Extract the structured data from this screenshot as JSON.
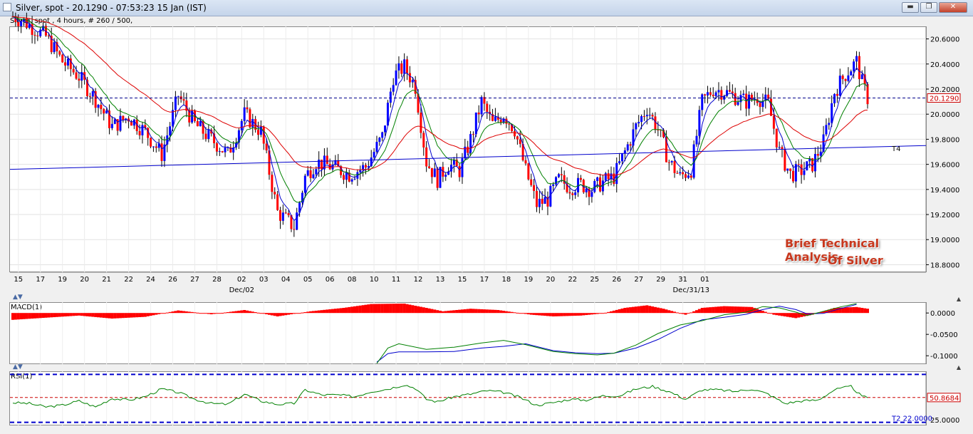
{
  "window": {
    "title": "Silver, spot - 20.1290 - 07:53:23  15 Jan (IST)",
    "buttons": {
      "minimize": "▬",
      "maximize": "❐",
      "close": "✕"
    }
  },
  "main_panel": {
    "label": "Silver, spot , 4 hours, # 260 / 500,"
  },
  "macd_panel": {
    "label": "MACD(1)"
  },
  "rsi_panel": {
    "label": "RSI(1)"
  },
  "watermark": {
    "line1": "Brief Technical Analysis",
    "line2": "Of Silver"
  },
  "chart_data": [
    {
      "type": "candlestick",
      "title": "Silver, spot , 4 hours, # 260 / 500,",
      "ylim": [
        18.74,
        20.7
      ],
      "y_ticks": [
        "20.6000",
        "20.4000",
        "20.2000",
        "20.0000",
        "19.8000",
        "19.6000",
        "19.4000",
        "19.2000",
        "19.0000",
        "18.8000"
      ],
      "x_ticks": [
        {
          "i": 2,
          "label": "15"
        },
        {
          "i": 10,
          "label": "17"
        },
        {
          "i": 18,
          "label": "19"
        },
        {
          "i": 26,
          "label": "20"
        },
        {
          "i": 34,
          "label": "21"
        },
        {
          "i": 42,
          "label": "22"
        },
        {
          "i": 50,
          "label": "24"
        },
        {
          "i": 58,
          "label": "26"
        },
        {
          "i": 66,
          "label": "27"
        },
        {
          "i": 74,
          "label": "28"
        },
        {
          "i": 83,
          "label": "02"
        },
        {
          "i": 91,
          "label": "03"
        },
        {
          "i": 99,
          "label": "04"
        },
        {
          "i": 107,
          "label": "05"
        },
        {
          "i": 115,
          "label": "06"
        },
        {
          "i": 123,
          "label": "08"
        },
        {
          "i": 131,
          "label": "10"
        },
        {
          "i": 139,
          "label": "11"
        },
        {
          "i": 147,
          "label": "12"
        },
        {
          "i": 155,
          "label": "13"
        },
        {
          "i": 163,
          "label": "15"
        },
        {
          "i": 171,
          "label": "17"
        },
        {
          "i": 179,
          "label": "18"
        },
        {
          "i": 187,
          "label": "19"
        },
        {
          "i": 195,
          "label": "20"
        },
        {
          "i": 203,
          "label": "22"
        },
        {
          "i": 211,
          "label": "25"
        },
        {
          "i": 219,
          "label": "26"
        },
        {
          "i": 227,
          "label": "27"
        },
        {
          "i": 235,
          "label": "29"
        },
        {
          "i": 243,
          "label": "31"
        },
        {
          "i": 251,
          "label": "01"
        }
      ],
      "x_ticks_note": "indices are bar positions in the displayed sequence",
      "x_labels_lower": [
        {
          "i": 83,
          "label": "Dec/02"
        },
        {
          "i": 246,
          "label": "Dec/31/13"
        }
      ],
      "current_price": 20.129,
      "current_price_label": "20.1290",
      "trendline": {
        "label": "T4",
        "y_start": 19.56,
        "y_end": 19.75
      },
      "moving_averages": [
        {
          "color": "#0000cc",
          "period": "short"
        },
        {
          "color": "#008000",
          "period": "medium"
        },
        {
          "color": "#dd0000",
          "period": "long"
        }
      ],
      "anchors": [
        [
          0,
          20.78
        ],
        [
          4,
          20.74
        ],
        [
          12,
          20.62
        ],
        [
          18,
          20.42
        ],
        [
          24,
          20.3
        ],
        [
          30,
          20.12
        ],
        [
          36,
          19.9
        ],
        [
          42,
          19.98
        ],
        [
          48,
          19.86
        ],
        [
          54,
          19.68
        ],
        [
          60,
          20.15
        ],
        [
          66,
          19.92
        ],
        [
          72,
          19.8
        ],
        [
          78,
          19.68
        ],
        [
          84,
          20.0
        ],
        [
          90,
          19.86
        ],
        [
          96,
          19.22
        ],
        [
          102,
          19.1
        ],
        [
          106,
          19.5
        ],
        [
          110,
          19.62
        ],
        [
          116,
          19.58
        ],
        [
          122,
          19.52
        ],
        [
          128,
          19.58
        ],
        [
          134,
          19.82
        ],
        [
          138,
          20.3
        ],
        [
          142,
          20.38
        ],
        [
          146,
          20.22
        ],
        [
          150,
          19.62
        ],
        [
          154,
          19.48
        ],
        [
          158,
          19.6
        ],
        [
          162,
          19.55
        ],
        [
          166,
          19.8
        ],
        [
          170,
          20.1
        ],
        [
          174,
          19.92
        ],
        [
          178,
          20.0
        ],
        [
          182,
          19.88
        ],
        [
          186,
          19.55
        ],
        [
          190,
          19.28
        ],
        [
          194,
          19.32
        ],
        [
          198,
          19.48
        ],
        [
          202,
          19.42
        ],
        [
          206,
          19.44
        ],
        [
          210,
          19.4
        ],
        [
          214,
          19.46
        ],
        [
          218,
          19.5
        ],
        [
          222,
          19.7
        ],
        [
          226,
          19.9
        ],
        [
          230,
          20.05
        ],
        [
          234,
          19.88
        ],
        [
          238,
          19.62
        ],
        [
          242,
          19.5
        ],
        [
          246,
          19.56
        ],
        [
          250,
          20.1
        ],
        [
          254,
          20.2
        ],
        [
          258,
          20.18
        ],
        [
          262,
          20.14
        ],
        [
          266,
          20.1
        ],
        [
          270,
          20.14
        ],
        [
          274,
          20.08
        ],
        [
          278,
          19.7
        ],
        [
          282,
          19.52
        ],
        [
          286,
          19.55
        ],
        [
          290,
          19.6
        ],
        [
          294,
          19.78
        ],
        [
          298,
          20.18
        ],
        [
          302,
          20.32
        ],
        [
          306,
          20.42
        ],
        [
          308,
          20.25
        ],
        [
          310,
          20.13
        ]
      ],
      "n_bars": 311
    },
    {
      "type": "line",
      "title": "MACD(1)",
      "ylim": [
        -0.118,
        0.022
      ],
      "y_ticks": [
        "0.0000",
        "-0.0500",
        "-0.1000"
      ],
      "histogram_color": "#ff0000",
      "series": [
        {
          "color": "#0000cc",
          "values": [
            [
              132,
              -0.115
            ],
            [
              136,
              -0.095
            ],
            [
              140,
              -0.091
            ],
            [
              150,
              -0.091
            ],
            [
              160,
              -0.09
            ],
            [
              170,
              -0.082
            ],
            [
              178,
              -0.078
            ],
            [
              186,
              -0.072
            ],
            [
              196,
              -0.088
            ],
            [
              204,
              -0.093
            ],
            [
              212,
              -0.095
            ],
            [
              218,
              -0.094
            ],
            [
              226,
              -0.082
            ],
            [
              234,
              -0.062
            ],
            [
              242,
              -0.036
            ],
            [
              250,
              -0.016
            ],
            [
              258,
              -0.01
            ],
            [
              266,
              -0.003
            ],
            [
              272,
              0.008
            ],
            [
              278,
              0.016
            ],
            [
              284,
              0.008
            ],
            [
              288,
              -0.002
            ],
            [
              294,
              -0.001
            ],
            [
              300,
              0.01
            ],
            [
              306,
              0.02
            ]
          ]
        },
        {
          "color": "#008000",
          "values": [
            [
              132,
              -0.118
            ],
            [
              136,
              -0.082
            ],
            [
              140,
              -0.072
            ],
            [
              150,
              -0.085
            ],
            [
              160,
              -0.08
            ],
            [
              170,
              -0.07
            ],
            [
              178,
              -0.064
            ],
            [
              186,
              -0.074
            ],
            [
              196,
              -0.09
            ],
            [
              204,
              -0.095
            ],
            [
              212,
              -0.098
            ],
            [
              218,
              -0.094
            ],
            [
              226,
              -0.075
            ],
            [
              234,
              -0.048
            ],
            [
              242,
              -0.028
            ],
            [
              250,
              -0.018
            ],
            [
              258,
              -0.004
            ],
            [
              266,
              0.002
            ],
            [
              272,
              0.015
            ],
            [
              278,
              0.012
            ],
            [
              284,
              0.002
            ],
            [
              288,
              -0.006
            ],
            [
              294,
              0.004
            ],
            [
              300,
              0.014
            ],
            [
              306,
              0.022
            ]
          ]
        }
      ],
      "histogram": [
        [
          0,
          -0.016
        ],
        [
          12,
          -0.011
        ],
        [
          24,
          -0.006
        ],
        [
          36,
          -0.013
        ],
        [
          48,
          -0.009
        ],
        [
          60,
          0.006
        ],
        [
          72,
          -0.003
        ],
        [
          84,
          0.007
        ],
        [
          96,
          -0.008
        ],
        [
          108,
          0.004
        ],
        [
          120,
          0.012
        ],
        [
          130,
          0.021
        ],
        [
          142,
          0.022
        ],
        [
          150,
          0.012
        ],
        [
          156,
          0.004
        ],
        [
          166,
          0.01
        ],
        [
          176,
          0.007
        ],
        [
          188,
          -0.004
        ],
        [
          196,
          -0.008
        ],
        [
          206,
          -0.006
        ],
        [
          214,
          -0.001
        ],
        [
          222,
          0.012
        ],
        [
          230,
          0.018
        ],
        [
          236,
          0.01
        ],
        [
          244,
          -0.004
        ],
        [
          250,
          0.012
        ],
        [
          258,
          0.016
        ],
        [
          268,
          0.014
        ],
        [
          276,
          -0.004
        ],
        [
          284,
          -0.012
        ],
        [
          290,
          -0.004
        ],
        [
          298,
          0.012
        ],
        [
          306,
          0.014
        ],
        [
          310,
          0.01
        ]
      ]
    },
    {
      "type": "line",
      "title": "RSI(1)",
      "ylim": [
        20,
        80
      ],
      "y_ticks": [
        "25.0000"
      ],
      "current_value_label": "50.8684",
      "level_label": "T2 22.0000",
      "series": [
        {
          "color": "#008000",
          "values": [
            [
              0,
              45
            ],
            [
              6,
              44
            ],
            [
              12,
              40
            ],
            [
              18,
              42
            ],
            [
              24,
              47
            ],
            [
              30,
              40
            ],
            [
              36,
              50
            ],
            [
              42,
              48
            ],
            [
              48,
              52
            ],
            [
              54,
              61
            ],
            [
              60,
              57
            ],
            [
              66,
              49
            ],
            [
              72,
              44
            ],
            [
              78,
              43
            ],
            [
              84,
              55
            ],
            [
              90,
              47
            ],
            [
              96,
              43
            ],
            [
              102,
              44
            ],
            [
              106,
              60
            ],
            [
              112,
              54
            ],
            [
              118,
              54
            ],
            [
              124,
              52
            ],
            [
              130,
              58
            ],
            [
              136,
              61
            ],
            [
              142,
              66
            ],
            [
              146,
              62
            ],
            [
              150,
              49
            ],
            [
              154,
              46
            ],
            [
              160,
              52
            ],
            [
              166,
              55
            ],
            [
              172,
              59
            ],
            [
              178,
              57
            ],
            [
              184,
              51
            ],
            [
              190,
              42
            ],
            [
              196,
              45
            ],
            [
              202,
              49
            ],
            [
              208,
              48
            ],
            [
              214,
              53
            ],
            [
              220,
              53
            ],
            [
              226,
              61
            ],
            [
              232,
              64
            ],
            [
              238,
              58
            ],
            [
              244,
              49
            ],
            [
              250,
              60
            ],
            [
              256,
              60
            ],
            [
              262,
              58
            ],
            [
              268,
              61
            ],
            [
              274,
              55
            ],
            [
              280,
              44
            ],
            [
              286,
              47
            ],
            [
              292,
              48
            ],
            [
              298,
              60
            ],
            [
              304,
              64
            ],
            [
              308,
              52
            ],
            [
              310,
              51
            ]
          ]
        }
      ]
    }
  ]
}
